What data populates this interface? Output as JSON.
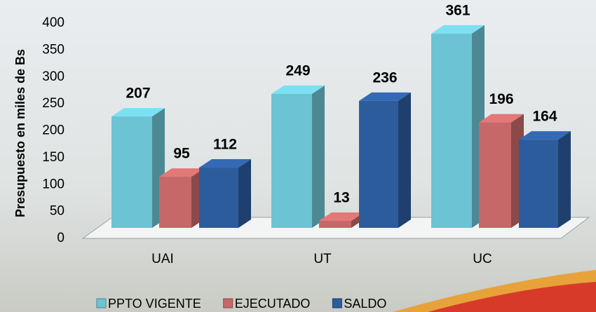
{
  "chart_data": {
    "type": "bar3d",
    "y_label": "Presupuesto en miles de Bs",
    "categories": [
      "UAI",
      "UT",
      "UC"
    ],
    "series": [
      {
        "name": "PPTO VIGENTE",
        "color": "#6cc3d3",
        "values": [
          207,
          249,
          361
        ]
      },
      {
        "name": "EJECUTADO",
        "color": "#c66868",
        "values": [
          95,
          13,
          196
        ]
      },
      {
        "name": "SALDO",
        "color": "#2d5c9d",
        "values": [
          112,
          236,
          164
        ]
      }
    ],
    "ylim": [
      0,
      400
    ],
    "yticks": [
      0,
      50,
      100,
      150,
      200,
      250,
      300,
      350,
      400
    ]
  }
}
